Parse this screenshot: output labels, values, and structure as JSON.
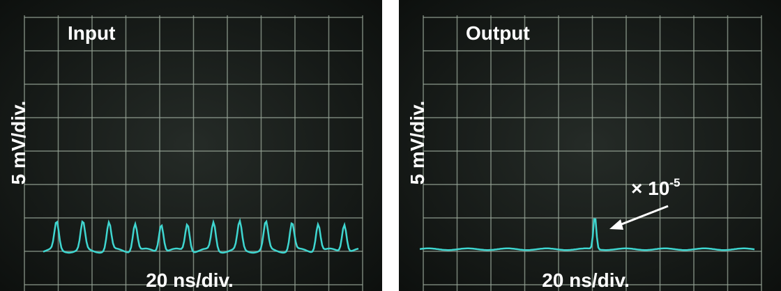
{
  "panels": [
    {
      "title": "Input",
      "y_label": "5 mV/div.",
      "x_label": "20 ns/div."
    },
    {
      "title": "Output",
      "y_label": "5 mV/div.",
      "x_label": "20 ns/div.",
      "annotation": {
        "base": "× 10",
        "exponent": "-5"
      }
    }
  ]
}
